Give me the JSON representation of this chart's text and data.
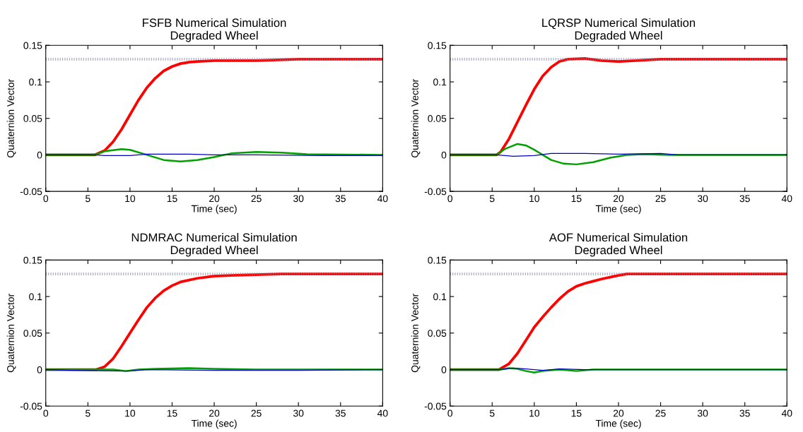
{
  "chart_data": [
    {
      "type": "line",
      "title": "FSFB Numerical Simulation\nDegraded Wheel",
      "xlabel": "Time (sec)",
      "ylabel": "Quaternion Vector",
      "xlim": [
        0,
        40
      ],
      "ylim": [
        -0.05,
        0.15
      ],
      "xticks": [
        0,
        5,
        10,
        15,
        20,
        25,
        30,
        35,
        40
      ],
      "yticks": [
        -0.05,
        0,
        0.05,
        0.1,
        0.15
      ],
      "grid": false,
      "legend": false,
      "marker": "none",
      "line_style": "solid",
      "ref_lines": [
        {
          "axis": "y",
          "value": 0.132,
          "color": "#7f7f9f",
          "line_style": "dotted"
        },
        {
          "axis": "y",
          "value": 0.13,
          "color": "#7f7f9f",
          "line_style": "dotted"
        }
      ],
      "series": [
        {
          "color": "#ff0000",
          "x": [
            0,
            5.8,
            7,
            8,
            9,
            10,
            11,
            12,
            13,
            14,
            15,
            16,
            17,
            18,
            20,
            25,
            30,
            40
          ],
          "values": [
            0,
            0,
            0.006,
            0.018,
            0.035,
            0.055,
            0.075,
            0.092,
            0.105,
            0.115,
            0.121,
            0.125,
            0.127,
            0.128,
            0.129,
            0.129,
            0.131,
            0.131
          ]
        },
        {
          "color": "#00a000",
          "x": [
            0,
            5.8,
            7,
            9,
            10,
            12,
            14,
            16,
            18,
            20,
            22,
            25,
            28,
            31,
            40
          ],
          "values": [
            0,
            0,
            0.005,
            0.008,
            0.007,
            0,
            -0.007,
            -0.009,
            -0.007,
            -0.003,
            0.002,
            0.004,
            0.003,
            0.001,
            0
          ]
        },
        {
          "color": "#0000c0",
          "x": [
            0,
            5.8,
            7,
            10,
            12,
            17,
            20,
            25,
            33,
            40
          ],
          "values": [
            0,
            0,
            -0.001,
            -0.001,
            0.001,
            0.001,
            0,
            0,
            -0.001,
            -0.001
          ]
        }
      ]
    },
    {
      "type": "line",
      "title": "LQRSP Numerical Simulation\nDegraded Wheel",
      "xlabel": "Time (sec)",
      "ylabel": "Quaternion Vector",
      "xlim": [
        0,
        40
      ],
      "ylim": [
        -0.05,
        0.15
      ],
      "xticks": [
        0,
        5,
        10,
        15,
        20,
        25,
        30,
        35,
        40
      ],
      "yticks": [
        -0.05,
        0,
        0.05,
        0.1,
        0.15
      ],
      "grid": false,
      "legend": false,
      "marker": "none",
      "line_style": "solid",
      "ref_lines": [
        {
          "axis": "y",
          "value": 0.132,
          "color": "#7f7f9f",
          "line_style": "dotted"
        },
        {
          "axis": "y",
          "value": 0.13,
          "color": "#7f7f9f",
          "line_style": "dotted"
        }
      ],
      "series": [
        {
          "color": "#ff0000",
          "x": [
            0,
            5.5,
            6,
            7,
            8,
            9,
            10,
            11,
            12,
            13,
            14,
            16,
            18,
            20,
            22,
            25,
            40
          ],
          "values": [
            0,
            0,
            0.004,
            0.022,
            0.045,
            0.068,
            0.09,
            0.108,
            0.12,
            0.128,
            0.131,
            0.132,
            0.129,
            0.128,
            0.129,
            0.131,
            0.131
          ]
        },
        {
          "color": "#00a000",
          "x": [
            0,
            5.5,
            6.5,
            8,
            9,
            10,
            11,
            12,
            13.5,
            15,
            17,
            19,
            21,
            23,
            26,
            40
          ],
          "values": [
            0,
            0,
            0.008,
            0.015,
            0.013,
            0.007,
            0,
            -0.007,
            -0.012,
            -0.013,
            -0.01,
            -0.004,
            0,
            0.001,
            0,
            0
          ]
        },
        {
          "color": "#0000c0",
          "x": [
            0,
            5.5,
            7.5,
            10,
            12,
            16,
            20,
            25,
            27,
            40
          ],
          "values": [
            0,
            0,
            -0.002,
            -0.001,
            0.002,
            0.002,
            0.001,
            0.002,
            0,
            0
          ]
        }
      ]
    },
    {
      "type": "line",
      "title": "NDMRAC Numerical Simulation\nDegraded Wheel",
      "xlabel": "Time (sec)",
      "ylabel": "Quaternion Vector",
      "xlim": [
        0,
        40
      ],
      "ylim": [
        -0.05,
        0.15
      ],
      "xticks": [
        0,
        5,
        10,
        15,
        20,
        25,
        30,
        35,
        40
      ],
      "yticks": [
        -0.05,
        0,
        0.05,
        0.1,
        0.15
      ],
      "grid": false,
      "legend": false,
      "marker": "none",
      "line_style": "solid",
      "ref_lines": [
        {
          "axis": "y",
          "value": 0.132,
          "color": "#7f7f9f",
          "line_style": "dotted"
        },
        {
          "axis": "y",
          "value": 0.13,
          "color": "#7f7f9f",
          "line_style": "dotted"
        }
      ],
      "series": [
        {
          "color": "#ff0000",
          "x": [
            0,
            6,
            7,
            8,
            9,
            10,
            11,
            12,
            13,
            14,
            15,
            16,
            18,
            20,
            22,
            28,
            40
          ],
          "values": [
            0,
            0,
            0.004,
            0.015,
            0.032,
            0.05,
            0.068,
            0.085,
            0.098,
            0.108,
            0.115,
            0.12,
            0.125,
            0.128,
            0.129,
            0.131,
            0.131
          ]
        },
        {
          "color": "#00a000",
          "x": [
            0,
            6,
            8,
            9.5,
            11,
            13,
            17,
            20,
            25,
            40
          ],
          "values": [
            0,
            0,
            0,
            -0.002,
            0,
            0.001,
            0.002,
            0.001,
            0,
            0
          ]
        },
        {
          "color": "#0000c0",
          "x": [
            0,
            3,
            9,
            10,
            12,
            20,
            30,
            40
          ],
          "values": [
            0,
            -0.001,
            -0.002,
            -0.002,
            0,
            -0.001,
            -0.001,
            0
          ]
        }
      ]
    },
    {
      "type": "line",
      "title": "AOF Numerical Simulation\nDegraded Wheel",
      "xlabel": "Time (sec)",
      "ylabel": "Quaternion Vector",
      "xlim": [
        0,
        40
      ],
      "ylim": [
        -0.05,
        0.15
      ],
      "xticks": [
        0,
        5,
        10,
        15,
        20,
        25,
        30,
        35,
        40
      ],
      "yticks": [
        -0.05,
        0,
        0.05,
        0.1,
        0.15
      ],
      "grid": false,
      "legend": false,
      "marker": "none",
      "line_style": "solid",
      "ref_lines": [
        {
          "axis": "y",
          "value": 0.132,
          "color": "#7f7f9f",
          "line_style": "dotted"
        },
        {
          "axis": "y",
          "value": 0.13,
          "color": "#7f7f9f",
          "line_style": "dotted"
        }
      ],
      "series": [
        {
          "color": "#ff0000",
          "x": [
            0,
            5.8,
            7,
            8,
            9,
            10,
            11,
            12,
            13,
            14,
            15,
            16,
            17,
            18,
            20,
            21,
            40
          ],
          "values": [
            0,
            0,
            0.008,
            0.022,
            0.04,
            0.058,
            0.072,
            0.085,
            0.097,
            0.107,
            0.114,
            0.118,
            0.121,
            0.124,
            0.129,
            0.131,
            0.131
          ]
        },
        {
          "color": "#00a000",
          "x": [
            0,
            6,
            7,
            8,
            9,
            10,
            11,
            13,
            15,
            17,
            40
          ],
          "values": [
            0,
            0,
            0.002,
            0.001,
            -0.002,
            -0.004,
            -0.002,
            0,
            -0.002,
            0,
            0
          ]
        },
        {
          "color": "#0000c0",
          "x": [
            0,
            6,
            7.5,
            9,
            11,
            13,
            16,
            40
          ],
          "values": [
            0,
            0,
            0.002,
            0.001,
            -0.001,
            0.001,
            0,
            0
          ]
        }
      ]
    }
  ]
}
